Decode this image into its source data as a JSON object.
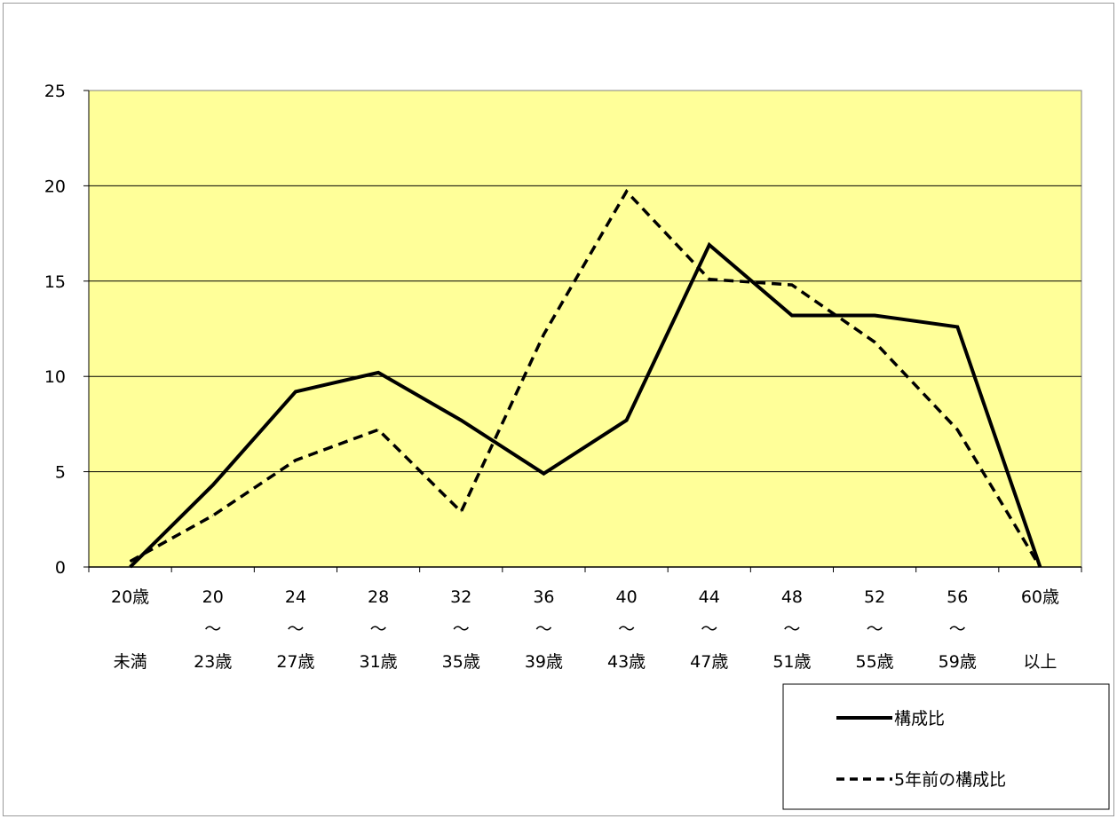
{
  "chart_data": {
    "type": "line",
    "title": "",
    "xlabel": "",
    "ylabel": "",
    "ylim": [
      0,
      25
    ],
    "y_ticks": [
      "0",
      "5",
      "10",
      "15",
      "20",
      "25"
    ],
    "grid": "horizontal",
    "plot_background": "#FFFF99",
    "legend_position": "bottom-right",
    "categories": [
      {
        "line1": "20歳",
        "line2": "",
        "line3": "未満"
      },
      {
        "line1": "20",
        "line2": "～",
        "line3": "23歳"
      },
      {
        "line1": "24",
        "line2": "～",
        "line3": "27歳"
      },
      {
        "line1": "28",
        "line2": "～",
        "line3": "31歳"
      },
      {
        "line1": "32",
        "line2": "～",
        "line3": "35歳"
      },
      {
        "line1": "36",
        "line2": "～",
        "line3": "39歳"
      },
      {
        "line1": "40",
        "line2": "～",
        "line3": "43歳"
      },
      {
        "line1": "44",
        "line2": "～",
        "line3": "47歳"
      },
      {
        "line1": "48",
        "line2": "～",
        "line3": "51歳"
      },
      {
        "line1": "52",
        "line2": "～",
        "line3": "55歳"
      },
      {
        "line1": "56",
        "line2": "～",
        "line3": "59歳"
      },
      {
        "line1": "60歳",
        "line2": "",
        "line3": "以上"
      }
    ],
    "series": [
      {
        "name": "構成比",
        "style": "solid",
        "color": "#000000",
        "values": [
          0,
          4.3,
          9.2,
          10.2,
          7.7,
          4.9,
          7.7,
          16.9,
          13.2,
          13.2,
          12.6,
          0
        ]
      },
      {
        "name": "5年前の構成比",
        "style": "dashed",
        "color": "#000000",
        "values": [
          0.3,
          2.7,
          5.6,
          7.2,
          2.9,
          12.2,
          19.7,
          15.1,
          14.8,
          11.8,
          7.2,
          0
        ]
      }
    ]
  }
}
